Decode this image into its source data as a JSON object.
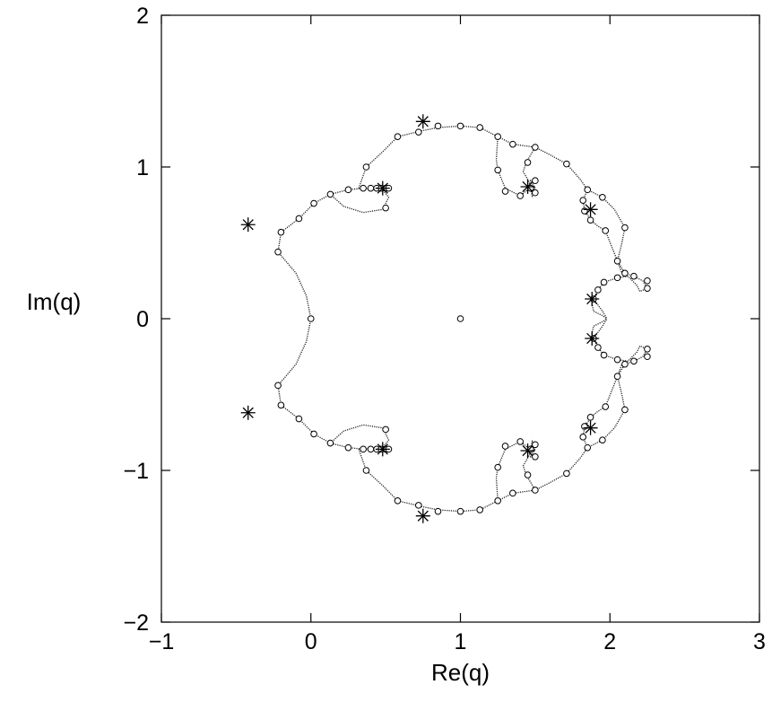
{
  "chart_data": {
    "type": "scatter",
    "xlabel": "Re(q)",
    "ylabel": "Im(q)",
    "xlim": [
      -1,
      3
    ],
    "ylim": [
      -2,
      2
    ],
    "xticks": [
      -1,
      0,
      1,
      2,
      3
    ],
    "yticks": [
      -2,
      -1,
      0,
      1,
      2
    ],
    "xtick_labels": [
      "−1",
      "0",
      "1",
      "2",
      "3"
    ],
    "ytick_labels": [
      "−2",
      "−1",
      "0",
      "1",
      "2"
    ],
    "grid": false,
    "legend": "none",
    "series": [
      {
        "marker": "dotted-curve",
        "note_type": "line",
        "segments": [
          [
            [
              0.0,
              0.0
            ],
            [
              -0.03,
              0.15
            ],
            [
              -0.1,
              0.3
            ],
            [
              -0.22,
              0.44
            ],
            [
              -0.2,
              0.57
            ],
            [
              -0.08,
              0.66
            ],
            [
              0.02,
              0.76
            ],
            [
              0.13,
              0.82
            ],
            [
              0.25,
              0.85
            ],
            [
              0.35,
              0.86
            ],
            [
              0.48,
              0.85
            ]
          ],
          [
            [
              0.0,
              0.0
            ],
            [
              -0.03,
              -0.15
            ],
            [
              -0.1,
              -0.3
            ],
            [
              -0.22,
              -0.44
            ],
            [
              -0.2,
              -0.57
            ],
            [
              -0.08,
              -0.66
            ],
            [
              0.02,
              -0.76
            ],
            [
              0.13,
              -0.82
            ],
            [
              0.25,
              -0.85
            ],
            [
              0.35,
              -0.86
            ],
            [
              0.48,
              -0.85
            ]
          ],
          [
            [
              0.13,
              0.82
            ],
            [
              0.22,
              0.74
            ],
            [
              0.35,
              0.7
            ],
            [
              0.48,
              0.72
            ],
            [
              0.52,
              0.8
            ],
            [
              0.48,
              0.85
            ]
          ],
          [
            [
              0.13,
              -0.82
            ],
            [
              0.22,
              -0.74
            ],
            [
              0.35,
              -0.7
            ],
            [
              0.48,
              -0.72
            ],
            [
              0.52,
              -0.8
            ],
            [
              0.48,
              -0.85
            ]
          ],
          [
            [
              0.32,
              0.86
            ],
            [
              0.37,
              1.0
            ],
            [
              0.48,
              1.1
            ],
            [
              0.58,
              1.2
            ],
            [
              0.75,
              1.24
            ],
            [
              0.85,
              1.26
            ],
            [
              1.0,
              1.27
            ],
            [
              1.13,
              1.26
            ],
            [
              1.25,
              1.2
            ],
            [
              1.35,
              1.15
            ],
            [
              1.5,
              1.13
            ],
            [
              1.6,
              1.08
            ],
            [
              1.71,
              1.02
            ],
            [
              1.8,
              0.92
            ],
            [
              1.85,
              0.85
            ],
            [
              1.95,
              0.8
            ],
            [
              2.03,
              0.72
            ],
            [
              2.1,
              0.6
            ],
            [
              2.08,
              0.5
            ],
            [
              2.05,
              0.38
            ],
            [
              2.1,
              0.3
            ],
            [
              2.16,
              0.28
            ],
            [
              2.22,
              0.25
            ],
            [
              2.25,
              0.2
            ],
            [
              2.2,
              0.18
            ],
            [
              2.18,
              0.22
            ],
            [
              2.12,
              0.28
            ],
            [
              2.05,
              0.27
            ],
            [
              1.96,
              0.24
            ],
            [
              1.92,
              0.19
            ],
            [
              1.89,
              0.13
            ],
            [
              1.95,
              0.05
            ],
            [
              1.98,
              0.0
            ]
          ],
          [
            [
              0.32,
              -0.86
            ],
            [
              0.37,
              -1.0
            ],
            [
              0.48,
              -1.1
            ],
            [
              0.58,
              -1.2
            ],
            [
              0.75,
              -1.24
            ],
            [
              0.85,
              -1.26
            ],
            [
              1.0,
              -1.27
            ],
            [
              1.13,
              -1.26
            ],
            [
              1.25,
              -1.2
            ],
            [
              1.35,
              -1.15
            ],
            [
              1.5,
              -1.13
            ],
            [
              1.6,
              -1.08
            ],
            [
              1.71,
              -1.02
            ],
            [
              1.8,
              -0.92
            ],
            [
              1.85,
              -0.85
            ],
            [
              1.95,
              -0.8
            ],
            [
              2.03,
              -0.72
            ],
            [
              2.1,
              -0.6
            ],
            [
              2.08,
              -0.5
            ],
            [
              2.05,
              -0.38
            ],
            [
              2.1,
              -0.3
            ],
            [
              2.16,
              -0.28
            ],
            [
              2.22,
              -0.25
            ],
            [
              2.25,
              -0.2
            ],
            [
              2.2,
              -0.18
            ],
            [
              2.18,
              -0.22
            ],
            [
              2.12,
              -0.28
            ],
            [
              2.05,
              -0.27
            ],
            [
              1.96,
              -0.24
            ],
            [
              1.92,
              -0.19
            ],
            [
              1.89,
              -0.13
            ],
            [
              1.95,
              -0.05
            ],
            [
              1.98,
              0.0
            ]
          ],
          [
            [
              1.25,
              1.2
            ],
            [
              1.24,
              1.05
            ],
            [
              1.25,
              0.98
            ],
            [
              1.3,
              0.86
            ],
            [
              1.4,
              0.81
            ],
            [
              1.45,
              0.85
            ],
            [
              1.47,
              0.91
            ],
            [
              1.5,
              0.86
            ],
            [
              1.48,
              0.81
            ],
            [
              1.46,
              0.9
            ],
            [
              1.42,
              0.97
            ],
            [
              1.44,
              1.03
            ],
            [
              1.5,
              1.13
            ]
          ],
          [
            [
              1.25,
              -1.2
            ],
            [
              1.24,
              -1.05
            ],
            [
              1.25,
              -0.98
            ],
            [
              1.3,
              -0.86
            ],
            [
              1.4,
              -0.81
            ],
            [
              1.45,
              -0.85
            ],
            [
              1.47,
              -0.91
            ],
            [
              1.5,
              -0.86
            ],
            [
              1.48,
              -0.81
            ],
            [
              1.46,
              -0.9
            ],
            [
              1.42,
              -0.97
            ],
            [
              1.44,
              -1.03
            ],
            [
              1.5,
              -1.13
            ]
          ],
          [
            [
              1.85,
              0.85
            ],
            [
              1.82,
              0.78
            ],
            [
              1.83,
              0.72
            ],
            [
              1.87,
              0.65
            ],
            [
              1.92,
              0.61
            ],
            [
              1.97,
              0.58
            ],
            [
              2.05,
              0.38
            ],
            [
              2.08,
              0.3
            ],
            [
              2.1,
              0.3
            ]
          ],
          [
            [
              1.85,
              -0.85
            ],
            [
              1.82,
              -0.78
            ],
            [
              1.83,
              -0.72
            ],
            [
              1.87,
              -0.65
            ],
            [
              1.92,
              -0.61
            ],
            [
              1.97,
              -0.58
            ],
            [
              2.05,
              -0.38
            ],
            [
              2.08,
              -0.3
            ],
            [
              2.1,
              -0.3
            ]
          ],
          [
            [
              1.89,
              0.13
            ],
            [
              1.88,
              0.1
            ],
            [
              1.89,
              0.05
            ],
            [
              1.95,
              0.02
            ],
            [
              1.98,
              0.0
            ]
          ],
          [
            [
              1.89,
              -0.13
            ],
            [
              1.88,
              -0.1
            ],
            [
              1.89,
              -0.05
            ],
            [
              1.95,
              -0.02
            ],
            [
              1.98,
              0.0
            ]
          ]
        ]
      },
      {
        "marker": "circle",
        "points": [
          [
            1.0,
            0.0
          ],
          [
            0.0,
            0.0
          ],
          [
            -0.22,
            0.44
          ],
          [
            -0.2,
            0.57
          ],
          [
            -0.08,
            0.66
          ],
          [
            0.02,
            0.76
          ],
          [
            0.13,
            0.82
          ],
          [
            0.25,
            0.85
          ],
          [
            0.35,
            0.86
          ],
          [
            0.4,
            0.86
          ],
          [
            0.44,
            0.86
          ],
          [
            0.47,
            0.86
          ],
          [
            0.5,
            0.86
          ],
          [
            0.52,
            0.86
          ],
          [
            0.5,
            0.73
          ],
          [
            0.37,
            1.0
          ],
          [
            0.58,
            1.2
          ],
          [
            0.72,
            1.23
          ],
          [
            0.85,
            1.27
          ],
          [
            1.0,
            1.27
          ],
          [
            1.13,
            1.26
          ],
          [
            1.25,
            1.2
          ],
          [
            1.35,
            1.15
          ],
          [
            1.5,
            1.13
          ],
          [
            1.71,
            1.02
          ],
          [
            1.85,
            0.85
          ],
          [
            1.95,
            0.8
          ],
          [
            2.1,
            0.6
          ],
          [
            2.05,
            0.38
          ],
          [
            2.1,
            0.3
          ],
          [
            2.16,
            0.28
          ],
          [
            2.25,
            0.25
          ],
          [
            2.25,
            0.2
          ],
          [
            2.05,
            0.27
          ],
          [
            1.96,
            0.24
          ],
          [
            1.92,
            0.19
          ],
          [
            1.89,
            0.13
          ],
          [
            1.25,
            0.98
          ],
          [
            1.3,
            0.84
          ],
          [
            1.4,
            0.81
          ],
          [
            1.47,
            0.86
          ],
          [
            1.5,
            0.83
          ],
          [
            1.5,
            0.91
          ],
          [
            1.45,
            1.03
          ],
          [
            1.82,
            0.78
          ],
          [
            1.83,
            0.71
          ],
          [
            1.87,
            0.65
          ],
          [
            1.97,
            0.58
          ],
          [
            -0.22,
            -0.44
          ],
          [
            -0.2,
            -0.57
          ],
          [
            -0.08,
            -0.66
          ],
          [
            0.02,
            -0.76
          ],
          [
            0.13,
            -0.82
          ],
          [
            0.25,
            -0.85
          ],
          [
            0.35,
            -0.86
          ],
          [
            0.4,
            -0.86
          ],
          [
            0.44,
            -0.86
          ],
          [
            0.47,
            -0.86
          ],
          [
            0.5,
            -0.86
          ],
          [
            0.52,
            -0.86
          ],
          [
            0.5,
            -0.73
          ],
          [
            0.37,
            -1.0
          ],
          [
            0.58,
            -1.2
          ],
          [
            0.72,
            -1.23
          ],
          [
            0.85,
            -1.27
          ],
          [
            1.0,
            -1.27
          ],
          [
            1.13,
            -1.26
          ],
          [
            1.25,
            -1.2
          ],
          [
            1.35,
            -1.15
          ],
          [
            1.5,
            -1.13
          ],
          [
            1.71,
            -1.02
          ],
          [
            1.85,
            -0.85
          ],
          [
            1.95,
            -0.8
          ],
          [
            2.1,
            -0.6
          ],
          [
            2.05,
            -0.38
          ],
          [
            2.1,
            -0.3
          ],
          [
            2.16,
            -0.28
          ],
          [
            2.25,
            -0.25
          ],
          [
            2.25,
            -0.2
          ],
          [
            2.05,
            -0.27
          ],
          [
            1.96,
            -0.24
          ],
          [
            1.92,
            -0.19
          ],
          [
            1.89,
            -0.13
          ],
          [
            1.25,
            -0.98
          ],
          [
            1.3,
            -0.84
          ],
          [
            1.4,
            -0.81
          ],
          [
            1.47,
            -0.86
          ],
          [
            1.5,
            -0.83
          ],
          [
            1.5,
            -0.91
          ],
          [
            1.45,
            -1.03
          ],
          [
            1.82,
            -0.78
          ],
          [
            1.83,
            -0.71
          ],
          [
            1.87,
            -0.65
          ],
          [
            1.97,
            -0.58
          ]
        ]
      },
      {
        "marker": "star",
        "points": [
          [
            -0.42,
            0.62
          ],
          [
            -0.42,
            -0.62
          ],
          [
            0.48,
            0.86
          ],
          [
            0.48,
            -0.86
          ],
          [
            0.75,
            1.3
          ],
          [
            0.75,
            -1.3
          ],
          [
            1.45,
            0.87
          ],
          [
            1.45,
            -0.87
          ],
          [
            1.87,
            0.72
          ],
          [
            1.87,
            -0.72
          ],
          [
            1.88,
            0.13
          ],
          [
            1.88,
            -0.13
          ]
        ]
      }
    ]
  }
}
